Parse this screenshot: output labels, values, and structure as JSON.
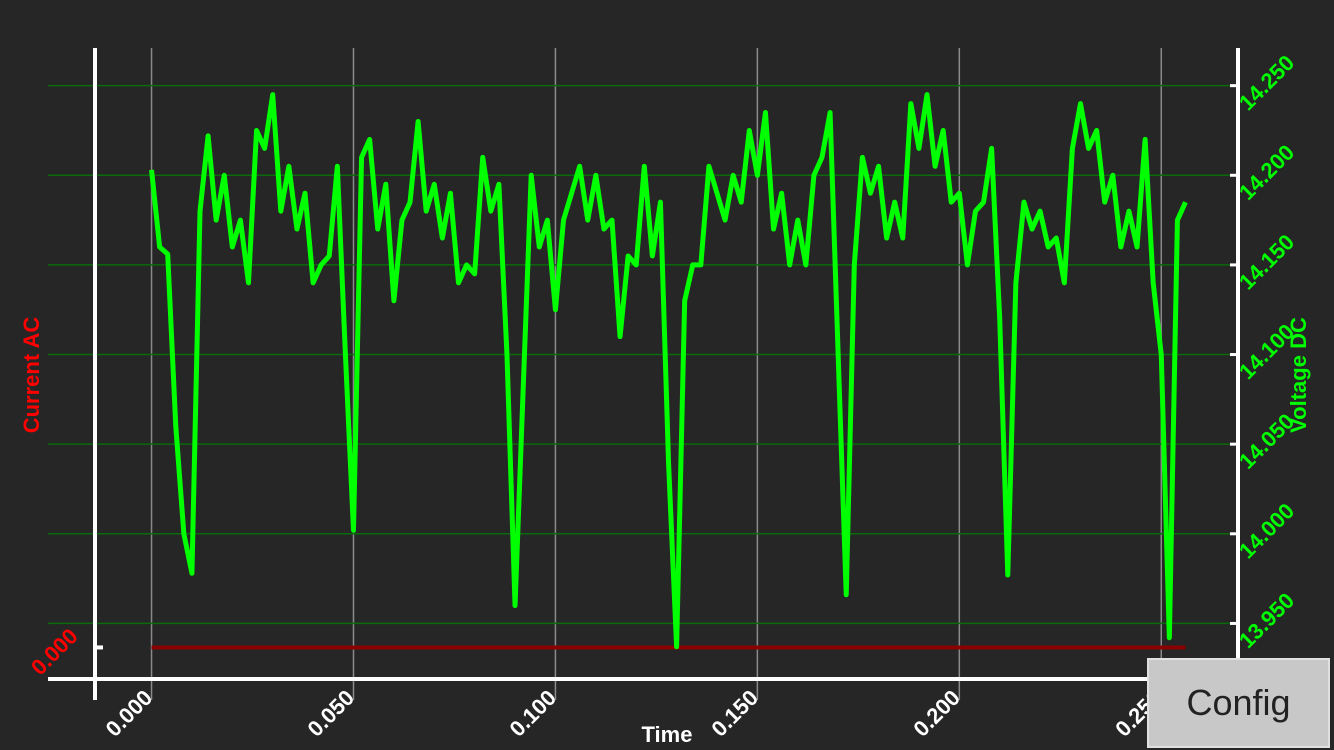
{
  "chart_data": {
    "type": "line",
    "xlabel": "Time",
    "ylabel": "Current AC",
    "y2label": "Voltage DC",
    "x": [
      0.0,
      0.002,
      0.004,
      0.006,
      0.008,
      0.01,
      0.012,
      0.014,
      0.016,
      0.018,
      0.02,
      0.022,
      0.024,
      0.026,
      0.028,
      0.03,
      0.032,
      0.034,
      0.036,
      0.038,
      0.04,
      0.042,
      0.044,
      0.046,
      0.048,
      0.05,
      0.052,
      0.054,
      0.056,
      0.058,
      0.06,
      0.062,
      0.064,
      0.066,
      0.068,
      0.07,
      0.072,
      0.074,
      0.076,
      0.078,
      0.08,
      0.082,
      0.084,
      0.086,
      0.088,
      0.09,
      0.092,
      0.094,
      0.096,
      0.098,
      0.1,
      0.102,
      0.104,
      0.106,
      0.108,
      0.11,
      0.112,
      0.114,
      0.116,
      0.118,
      0.12,
      0.122,
      0.124,
      0.126,
      0.128,
      0.13,
      0.132,
      0.134,
      0.136,
      0.138,
      0.14,
      0.142,
      0.144,
      0.146,
      0.148,
      0.15,
      0.152,
      0.154,
      0.156,
      0.158,
      0.16,
      0.162,
      0.164,
      0.166,
      0.168,
      0.17,
      0.172,
      0.174,
      0.176,
      0.178,
      0.18,
      0.182,
      0.184,
      0.186,
      0.188,
      0.19,
      0.192,
      0.194,
      0.196,
      0.198,
      0.2,
      0.202,
      0.204,
      0.206,
      0.208,
      0.21,
      0.212,
      0.214,
      0.216,
      0.218,
      0.22,
      0.222,
      0.224,
      0.226,
      0.228,
      0.23,
      0.232,
      0.234,
      0.236,
      0.238,
      0.24,
      0.242,
      0.244,
      0.246,
      0.248,
      0.25,
      0.252,
      0.254,
      0.256
    ],
    "series": [
      {
        "name": "Voltage DC",
        "axis": "y2",
        "color": "#00ff00",
        "values": [
          14.203,
          14.16,
          14.156,
          14.06,
          14.0,
          13.978,
          14.18,
          14.222,
          14.175,
          14.2,
          14.16,
          14.175,
          14.14,
          14.225,
          14.215,
          14.245,
          14.18,
          14.205,
          14.17,
          14.19,
          14.14,
          14.15,
          14.155,
          14.205,
          14.1,
          14.002,
          14.21,
          14.22,
          14.17,
          14.195,
          14.13,
          14.175,
          14.185,
          14.23,
          14.18,
          14.195,
          14.165,
          14.19,
          14.14,
          14.15,
          14.145,
          14.21,
          14.18,
          14.195,
          14.1,
          13.96,
          14.08,
          14.2,
          14.16,
          14.175,
          14.125,
          14.175,
          14.19,
          14.205,
          14.175,
          14.2,
          14.17,
          14.175,
          14.11,
          14.155,
          14.15,
          14.205,
          14.155,
          14.185,
          14.04,
          13.937,
          14.13,
          14.15,
          14.15,
          14.205,
          14.19,
          14.175,
          14.2,
          14.185,
          14.225,
          14.2,
          14.235,
          14.17,
          14.19,
          14.15,
          14.175,
          14.15,
          14.2,
          14.21,
          14.235,
          14.1,
          13.966,
          14.15,
          14.21,
          14.19,
          14.205,
          14.165,
          14.185,
          14.165,
          14.24,
          14.215,
          14.245,
          14.205,
          14.225,
          14.185,
          14.19,
          14.15,
          14.18,
          14.185,
          14.215,
          14.12,
          13.977,
          14.14,
          14.185,
          14.17,
          14.18,
          14.16,
          14.165,
          14.14,
          14.215,
          14.24,
          14.215,
          14.225,
          14.185,
          14.2,
          14.16,
          14.18,
          14.16,
          14.22,
          14.14,
          14.1,
          13.942,
          14.175,
          14.185
        ]
      },
      {
        "name": "Current AC",
        "axis": "y",
        "color": "#8b0000",
        "values": [
          0,
          0,
          0,
          0,
          0,
          0,
          0,
          0,
          0,
          0,
          0,
          0,
          0,
          0,
          0,
          0,
          0,
          0,
          0,
          0,
          0,
          0,
          0,
          0,
          0,
          0,
          0,
          0,
          0,
          0,
          0,
          0,
          0,
          0,
          0,
          0,
          0,
          0,
          0,
          0,
          0,
          0,
          0,
          0,
          0,
          0,
          0,
          0,
          0,
          0,
          0,
          0,
          0,
          0,
          0,
          0,
          0,
          0,
          0,
          0,
          0,
          0,
          0,
          0,
          0,
          0,
          0,
          0,
          0,
          0,
          0,
          0,
          0,
          0,
          0,
          0,
          0,
          0,
          0,
          0,
          0,
          0,
          0,
          0,
          0,
          0,
          0,
          0,
          0,
          0,
          0,
          0,
          0,
          0,
          0,
          0,
          0,
          0,
          0,
          0,
          0,
          0,
          0,
          0,
          0,
          0,
          0,
          0,
          0,
          0,
          0,
          0,
          0,
          0,
          0,
          0,
          0,
          0,
          0,
          0,
          0,
          0,
          0,
          0,
          0,
          0,
          0,
          0,
          0
        ]
      }
    ],
    "xlim": [
      -0.014,
      0.269
    ],
    "xticks": [
      {
        "value": 0,
        "label": "0.000"
      },
      {
        "value": 0.05,
        "label": "0.050"
      },
      {
        "value": 0.1,
        "label": "0.100"
      },
      {
        "value": 0.15,
        "label": "0.150"
      },
      {
        "value": 0.2,
        "label": "0.200"
      },
      {
        "value": 0.25,
        "label": "0.250"
      }
    ],
    "ylim": [
      -0.05,
      0.95
    ],
    "yticks": [
      {
        "value": 0,
        "label": "0.000"
      }
    ],
    "y2lim": [
      13.919,
      14.271
    ],
    "y2ticks": [
      {
        "value": 13.95,
        "label": "13.950"
      },
      {
        "value": 14,
        "label": "14.000"
      },
      {
        "value": 14.05,
        "label": "14.050"
      },
      {
        "value": 14.1,
        "label": "14.100"
      },
      {
        "value": 14.15,
        "label": "14.150"
      },
      {
        "value": 14.2,
        "label": "14.200"
      },
      {
        "value": 14.25,
        "label": "14.250"
      }
    ],
    "grid": true
  },
  "ui": {
    "button": "Config"
  }
}
